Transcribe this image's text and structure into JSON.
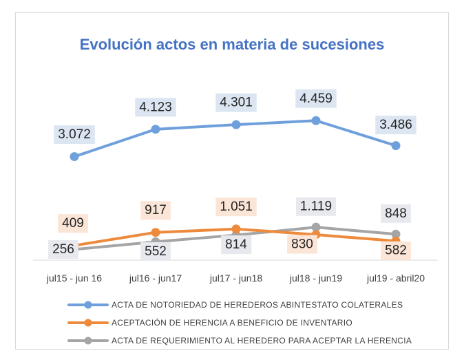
{
  "chart_data": {
    "type": "line",
    "title": "Evolución actos en materia de sucesiones",
    "categories": [
      "jul15 - jun 16",
      "jul16 - jun17",
      "jul17 - jun18",
      "jul18 - jun19",
      "jul19 - abril20"
    ],
    "series": [
      {
        "name": "ACTA DE NOTORIEDAD DE HEREDEROS ABINTESTATO COLATERALES",
        "values": [
          3072,
          4123,
          4301,
          4459,
          3486
        ],
        "labels": [
          "3.072",
          "4.123",
          "4.301",
          "4.459",
          "3.486"
        ],
        "color": "#6fa0dc",
        "label_bg": "#dce6f2"
      },
      {
        "name": "ACEPTACIÓN DE HERENCIA A BENEFICIO DE INVENTARIO",
        "values": [
          409,
          917,
          1051,
          830,
          582
        ],
        "labels": [
          "409",
          "917",
          "1.051",
          "830",
          "582"
        ],
        "color": "#ed8a3c",
        "label_bg": "#fbe5d6"
      },
      {
        "name": "ACTA DE REQUERIMIENTO AL HEREDERO PARA ACEPTAR LA HERENCIA",
        "values": [
          256,
          552,
          814,
          1119,
          848
        ],
        "labels": [
          "256",
          "552",
          "814",
          "1.119",
          "848"
        ],
        "color": "#a5a5a5",
        "label_bg": "#e7e9ee"
      }
    ],
    "legend_position": "bottom",
    "grid": false
  }
}
